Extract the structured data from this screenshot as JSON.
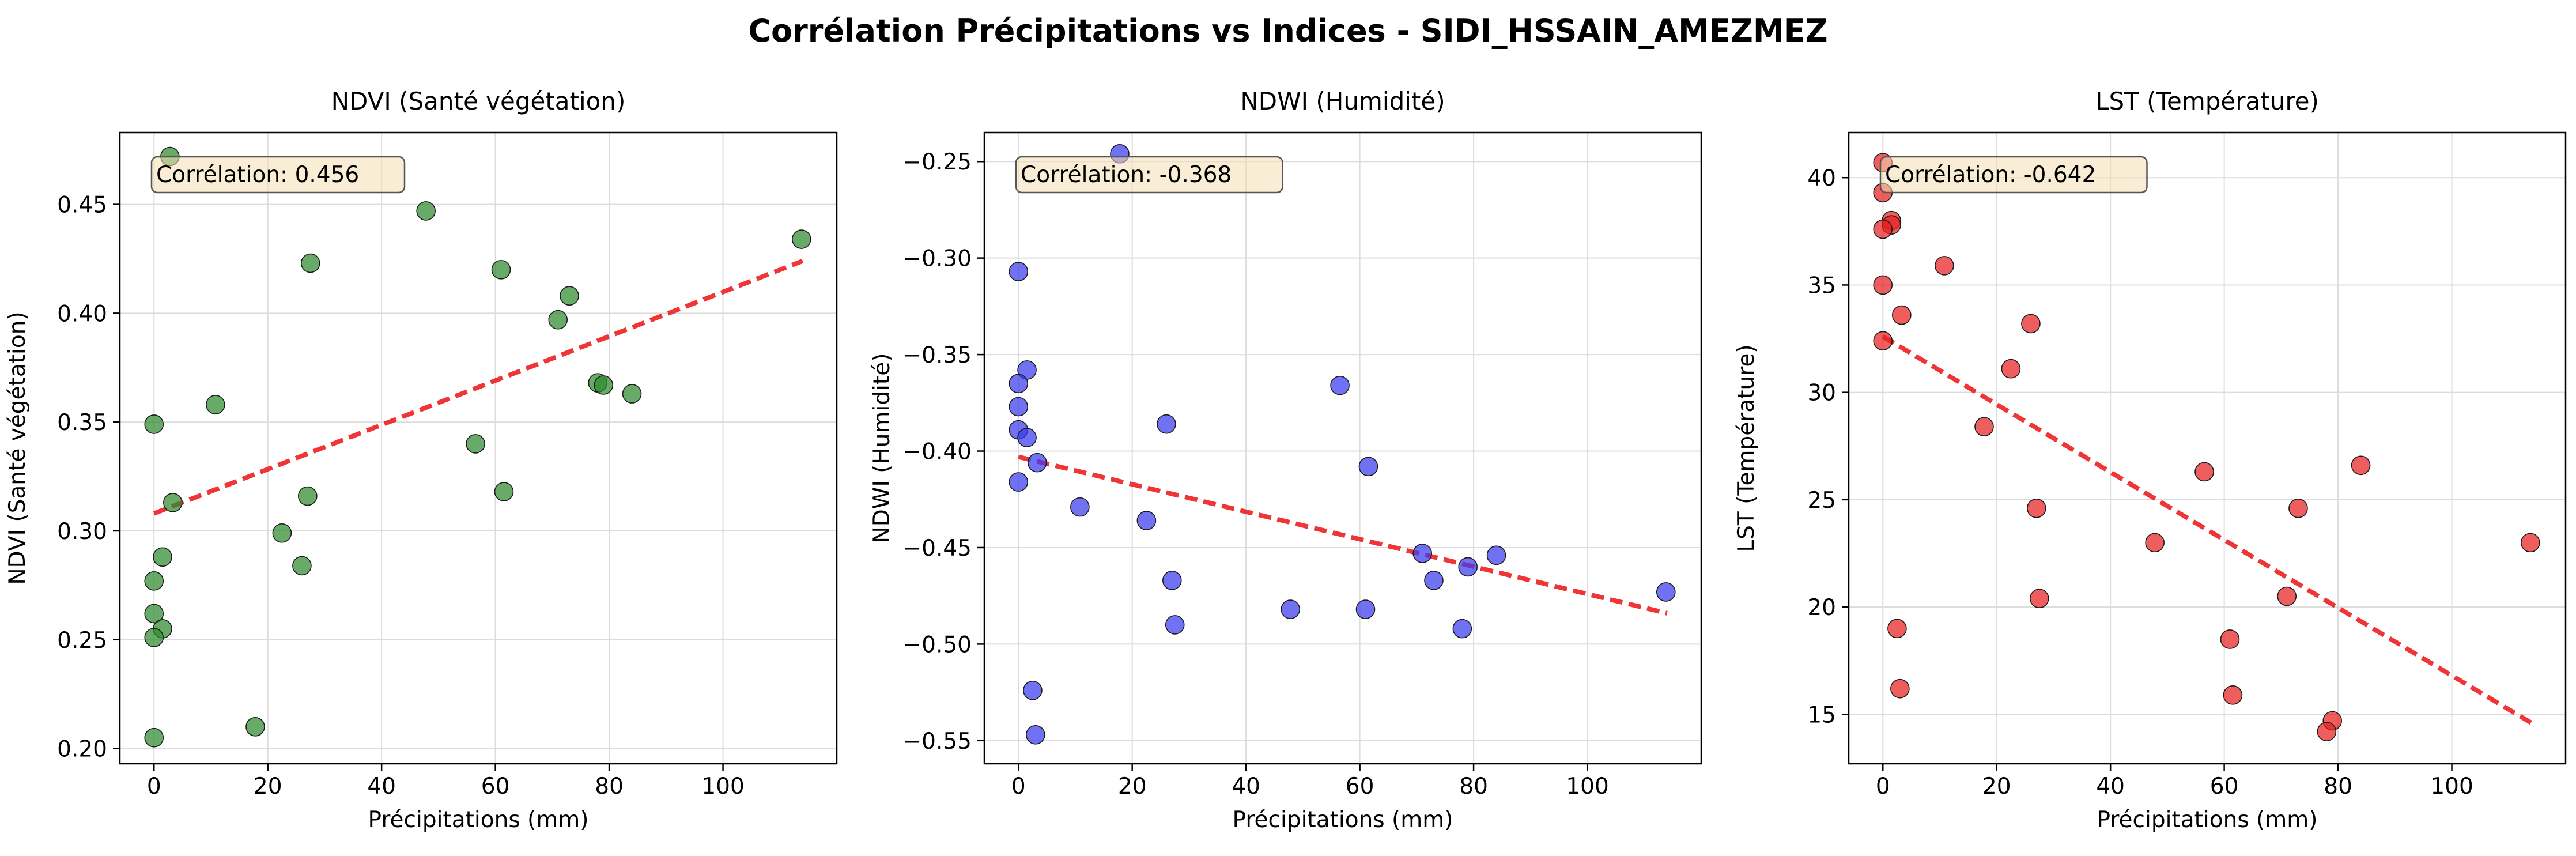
{
  "title": "Corrélation Précipitations vs Indices - SIDI_HSSAIN_AMEZMEZ",
  "chart_data": [
    {
      "type": "scatter",
      "title": "NDVI (Santé végétation)",
      "xlabel": "Précipitations (mm)",
      "ylabel": "NDVI (Santé végétation)",
      "annotation": "Corrélation: 0.456",
      "grid": true,
      "marker_color": "#2e8b2e",
      "trend_color": "#ee2020",
      "xlim": [
        -6,
        120
      ],
      "ylim": [
        0.193,
        0.483
      ],
      "xticks": [
        0,
        20,
        40,
        60,
        80,
        100
      ],
      "yticks": [
        0.2,
        0.25,
        0.3,
        0.35,
        0.4,
        0.45
      ],
      "ytick_labels": [
        "0.20",
        "0.25",
        "0.30",
        "0.35",
        "0.40",
        "0.45"
      ],
      "trend": {
        "x": [
          0,
          114
        ],
        "y": [
          0.308,
          0.424
        ]
      },
      "points": [
        {
          "x": 2.8,
          "y": 0.472
        },
        {
          "x": 47.8,
          "y": 0.447
        },
        {
          "x": 27.5,
          "y": 0.423
        },
        {
          "x": 61.0,
          "y": 0.42
        },
        {
          "x": 113.8,
          "y": 0.434
        },
        {
          "x": 73.0,
          "y": 0.408
        },
        {
          "x": 71.0,
          "y": 0.397
        },
        {
          "x": 78.0,
          "y": 0.368
        },
        {
          "x": 79.0,
          "y": 0.367
        },
        {
          "x": 84.0,
          "y": 0.363
        },
        {
          "x": 10.8,
          "y": 0.358
        },
        {
          "x": 0.0,
          "y": 0.349
        },
        {
          "x": 56.5,
          "y": 0.34
        },
        {
          "x": 61.5,
          "y": 0.318
        },
        {
          "x": 27.0,
          "y": 0.316
        },
        {
          "x": 3.3,
          "y": 0.313
        },
        {
          "x": 22.5,
          "y": 0.299
        },
        {
          "x": 1.5,
          "y": 0.288
        },
        {
          "x": 26.0,
          "y": 0.284
        },
        {
          "x": 0.0,
          "y": 0.277
        },
        {
          "x": 0.0,
          "y": 0.262
        },
        {
          "x": 1.5,
          "y": 0.255
        },
        {
          "x": 0.0,
          "y": 0.251
        },
        {
          "x": 17.8,
          "y": 0.21
        },
        {
          "x": 0.0,
          "y": 0.205
        }
      ]
    },
    {
      "type": "scatter",
      "title": "NDWI (Humidité)",
      "xlabel": "Précipitations (mm)",
      "ylabel": "NDWI (Humidité)",
      "annotation": "Corrélation: -0.368",
      "grid": true,
      "marker_color": "#3a3aee",
      "trend_color": "#ee2020",
      "xlim": [
        -6,
        120
      ],
      "ylim": [
        -0.562,
        -0.235
      ],
      "xticks": [
        0,
        20,
        40,
        60,
        80,
        100
      ],
      "yticks": [
        -0.55,
        -0.5,
        -0.45,
        -0.4,
        -0.35,
        -0.3,
        -0.25
      ],
      "ytick_labels": [
        "−0.55",
        "−0.50",
        "−0.45",
        "−0.40",
        "−0.35",
        "−0.30",
        "−0.25"
      ],
      "trend": {
        "x": [
          0,
          114
        ],
        "y": [
          -0.403,
          -0.484
        ]
      },
      "points": [
        {
          "x": 17.8,
          "y": -0.246
        },
        {
          "x": 0.0,
          "y": -0.307
        },
        {
          "x": 1.5,
          "y": -0.358
        },
        {
          "x": 0.0,
          "y": -0.365
        },
        {
          "x": 56.5,
          "y": -0.366
        },
        {
          "x": 0.0,
          "y": -0.377
        },
        {
          "x": 26.0,
          "y": -0.386
        },
        {
          "x": 0.0,
          "y": -0.389
        },
        {
          "x": 1.5,
          "y": -0.393
        },
        {
          "x": 3.3,
          "y": -0.406
        },
        {
          "x": 61.5,
          "y": -0.408
        },
        {
          "x": 0.0,
          "y": -0.416
        },
        {
          "x": 10.8,
          "y": -0.429
        },
        {
          "x": 22.5,
          "y": -0.436
        },
        {
          "x": 71.0,
          "y": -0.453
        },
        {
          "x": 84.0,
          "y": -0.454
        },
        {
          "x": 79.0,
          "y": -0.46
        },
        {
          "x": 27.0,
          "y": -0.467
        },
        {
          "x": 73.0,
          "y": -0.467
        },
        {
          "x": 113.8,
          "y": -0.473
        },
        {
          "x": 47.8,
          "y": -0.482
        },
        {
          "x": 61.0,
          "y": -0.482
        },
        {
          "x": 27.5,
          "y": -0.49
        },
        {
          "x": 78.0,
          "y": -0.492
        },
        {
          "x": 2.5,
          "y": -0.524
        },
        {
          "x": 3.0,
          "y": -0.547
        }
      ]
    },
    {
      "type": "scatter",
      "title": "LST (Température)",
      "xlabel": "Précipitations (mm)",
      "ylabel": "LST (Température)",
      "annotation": "Corrélation: -0.642",
      "grid": true,
      "marker_color": "#e82020",
      "trend_color": "#ee2020",
      "xlim": [
        -6,
        120
      ],
      "ylim": [
        12.7,
        42.1
      ],
      "xticks": [
        0,
        20,
        40,
        60,
        80,
        100
      ],
      "yticks": [
        15,
        20,
        25,
        30,
        35,
        40
      ],
      "ytick_labels": [
        "15",
        "20",
        "25",
        "30",
        "35",
        "40"
      ],
      "trend": {
        "x": [
          0,
          114
        ],
        "y": [
          32.6,
          14.6
        ]
      },
      "points": [
        {
          "x": 0.0,
          "y": 40.7
        },
        {
          "x": 0.0,
          "y": 39.3
        },
        {
          "x": 1.5,
          "y": 38.0
        },
        {
          "x": 1.5,
          "y": 37.8
        },
        {
          "x": 0.0,
          "y": 37.6
        },
        {
          "x": 10.8,
          "y": 35.9
        },
        {
          "x": 0.0,
          "y": 35.0
        },
        {
          "x": 3.3,
          "y": 33.6
        },
        {
          "x": 26.0,
          "y": 33.2
        },
        {
          "x": 0.0,
          "y": 32.4
        },
        {
          "x": 22.5,
          "y": 31.1
        },
        {
          "x": 17.8,
          "y": 28.4
        },
        {
          "x": 84.0,
          "y": 26.6
        },
        {
          "x": 56.5,
          "y": 26.3
        },
        {
          "x": 27.0,
          "y": 24.6
        },
        {
          "x": 73.0,
          "y": 24.6
        },
        {
          "x": 47.8,
          "y": 23.0
        },
        {
          "x": 113.8,
          "y": 23.0
        },
        {
          "x": 71.0,
          "y": 20.5
        },
        {
          "x": 27.5,
          "y": 20.4
        },
        {
          "x": 2.5,
          "y": 19.0
        },
        {
          "x": 61.0,
          "y": 18.5
        },
        {
          "x": 3.0,
          "y": 16.2
        },
        {
          "x": 61.5,
          "y": 15.9
        },
        {
          "x": 79.0,
          "y": 14.7
        },
        {
          "x": 78.0,
          "y": 14.2
        }
      ]
    }
  ]
}
